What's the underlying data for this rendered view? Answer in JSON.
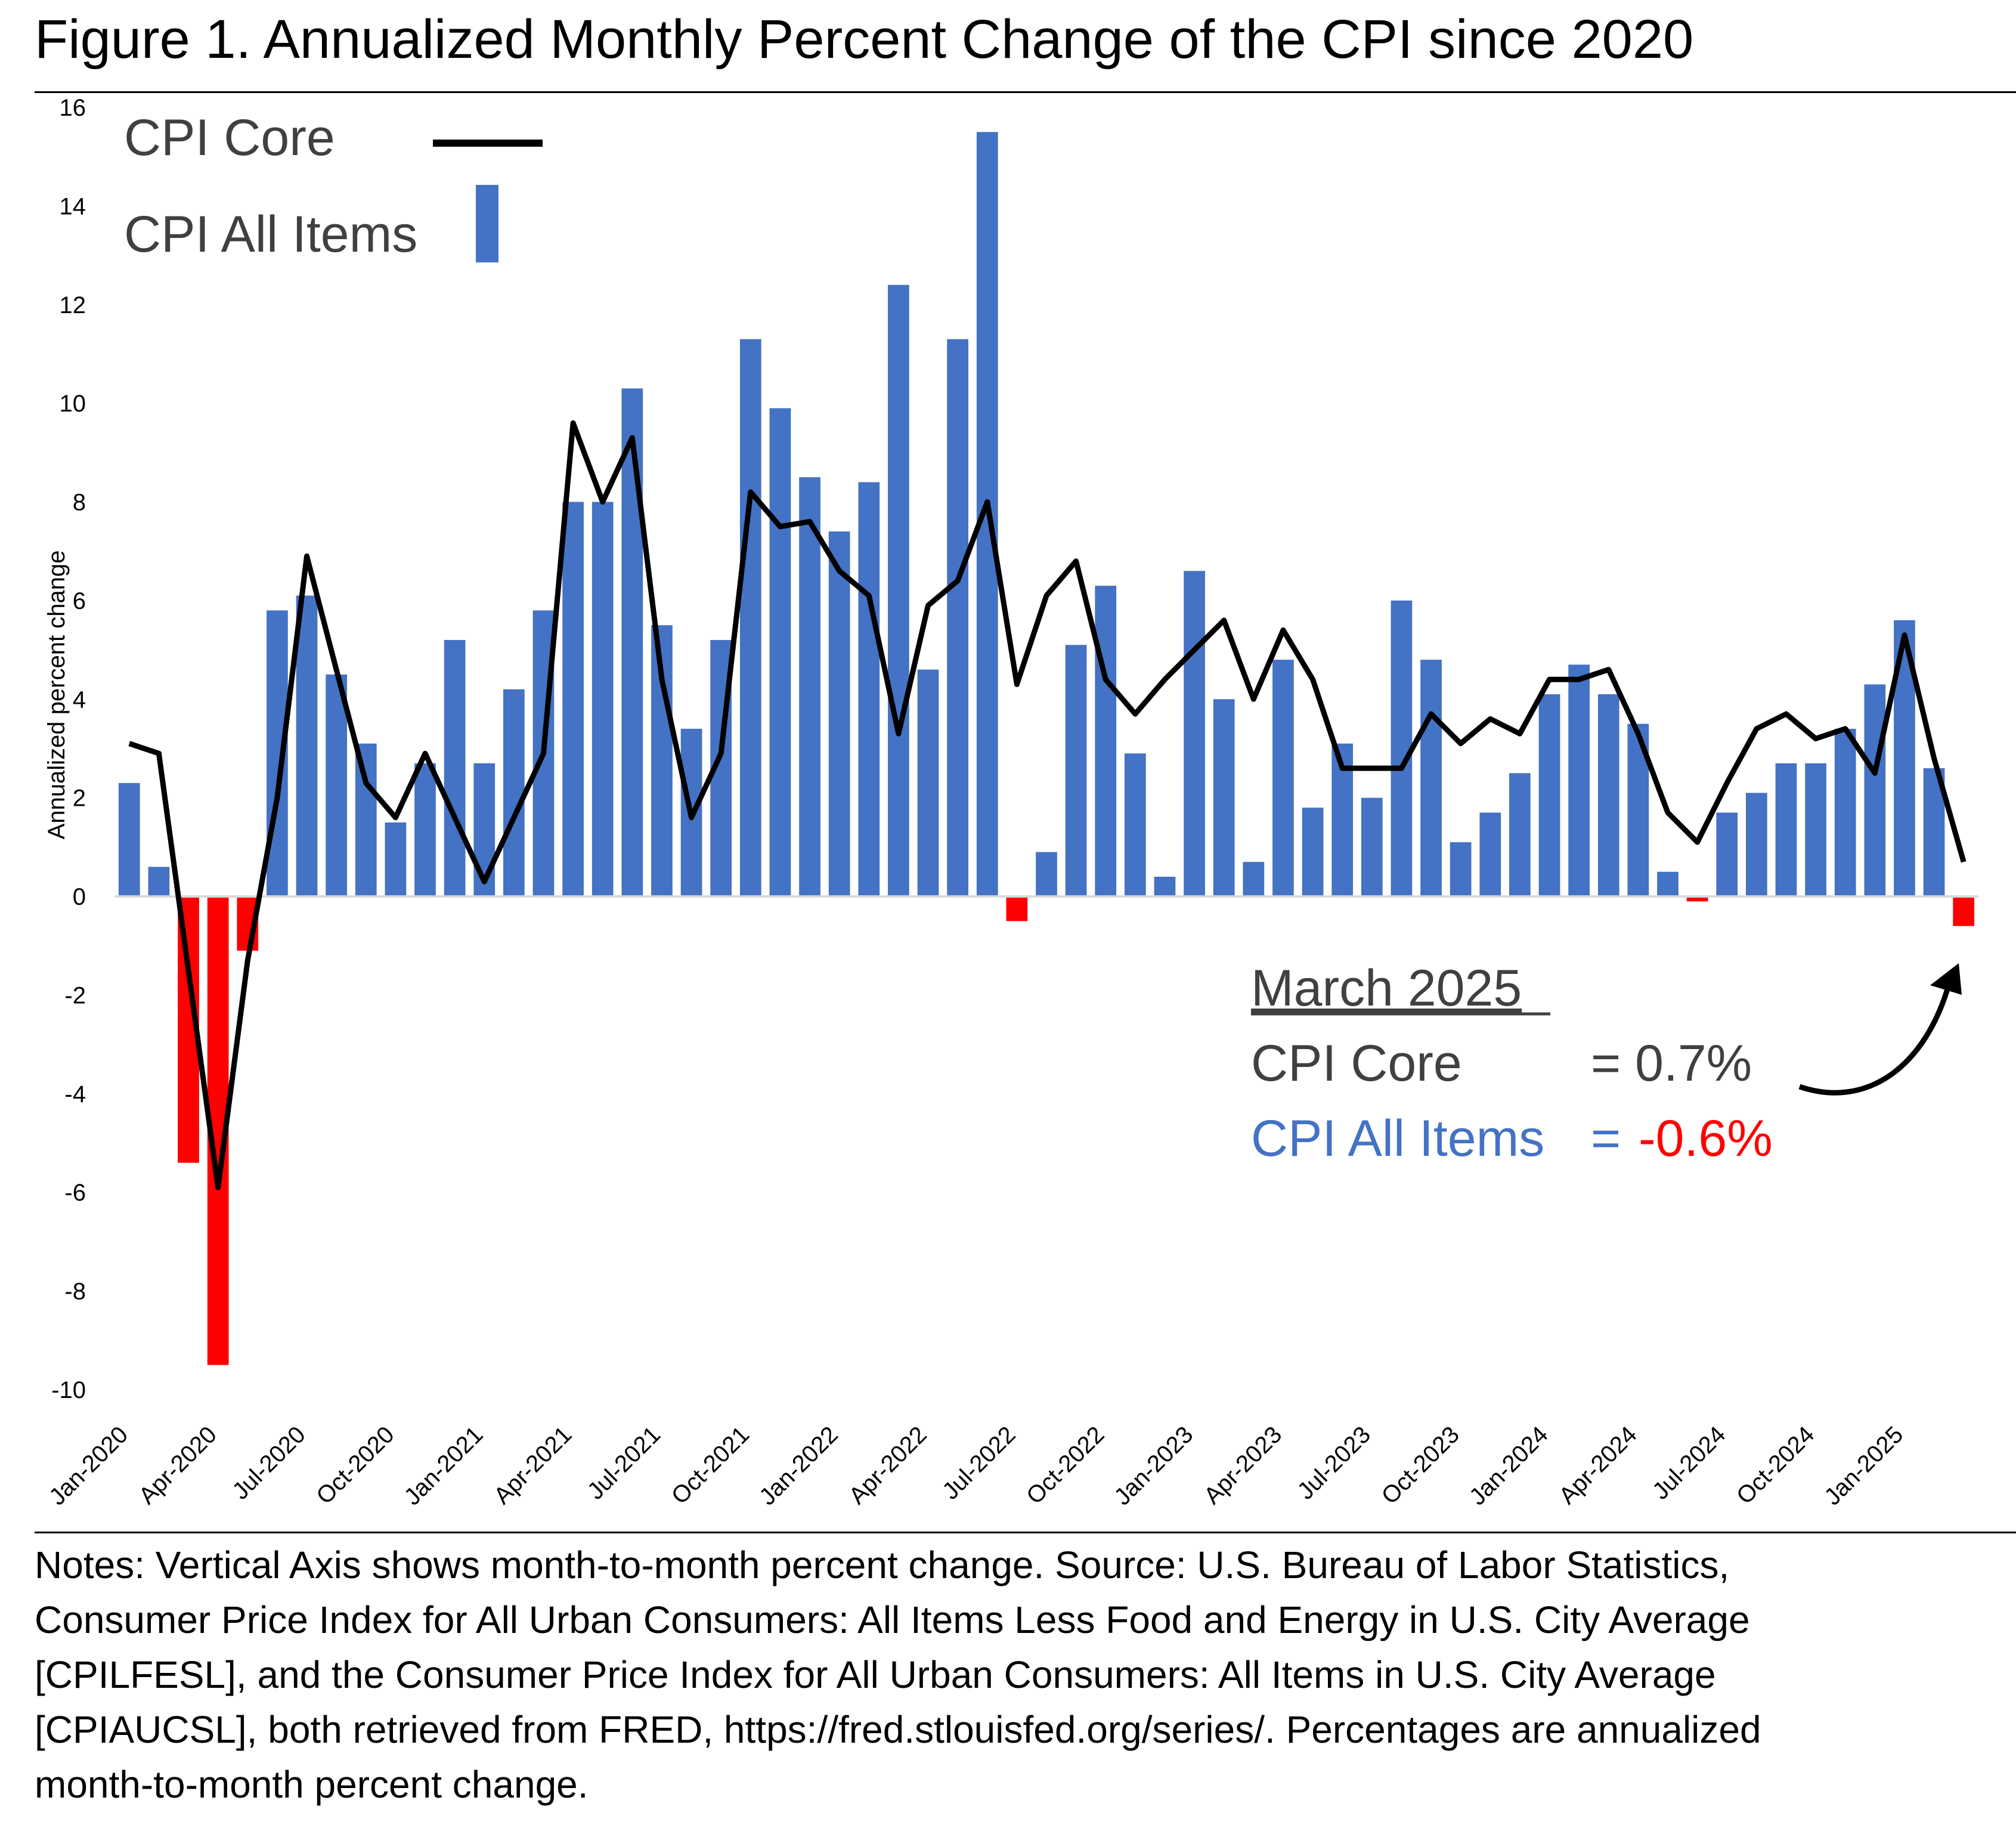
{
  "title": "Figure 1. Annualized Monthly Percent Change of the CPI since 2020",
  "notes_lines": [
    "Notes: Vertical Axis shows month-to-month percent change. Source: U.S. Bureau of Labor Statistics,",
    "Consumer Price Index for All Urban Consumers: All Items Less Food and Energy in U.S. City Average",
    "[CPILFESL], and the Consumer Price Index for All Urban Consumers: All Items in U.S. City Average",
    "[CPIAUCSL], both retrieved from FRED, https://fred.stlouisfed.org/series/. Percentages are annualized",
    "month-to-month percent change."
  ],
  "annotation": {
    "heading": "March 2025",
    "core_label": "CPI Core",
    "core_value": "= 0.7%",
    "all_label": "CPI All Items",
    "all_eq": "=",
    "all_value": "-0.6%"
  },
  "colors": {
    "bar_positive": "#4472C4",
    "bar_negative": "#FF0000",
    "core_line": "#000000",
    "legend_text": "#404040",
    "annotation_all_label": "#4472C4",
    "annotation_all_value": "#FF0000"
  },
  "chart_data": {
    "type": "bar",
    "ylabel": "Annualized percent change",
    "ylim": [
      -10,
      16
    ],
    "ytick_step": 2,
    "grid": false,
    "legend_position": "top-left",
    "categories": [
      "Jan-2020",
      "Feb-2020",
      "Mar-2020",
      "Apr-2020",
      "May-2020",
      "Jun-2020",
      "Jul-2020",
      "Aug-2020",
      "Sep-2020",
      "Oct-2020",
      "Nov-2020",
      "Dec-2020",
      "Jan-2021",
      "Feb-2021",
      "Mar-2021",
      "Apr-2021",
      "May-2021",
      "Jun-2021",
      "Jul-2021",
      "Aug-2021",
      "Sep-2021",
      "Oct-2021",
      "Nov-2021",
      "Dec-2021",
      "Jan-2022",
      "Feb-2022",
      "Mar-2022",
      "Apr-2022",
      "May-2022",
      "Jun-2022",
      "Jul-2022",
      "Aug-2022",
      "Sep-2022",
      "Oct-2022",
      "Nov-2022",
      "Dec-2022",
      "Jan-2023",
      "Feb-2023",
      "Mar-2023",
      "Apr-2023",
      "May-2023",
      "Jun-2023",
      "Jul-2023",
      "Aug-2023",
      "Sep-2023",
      "Oct-2023",
      "Nov-2023",
      "Dec-2023",
      "Jan-2024",
      "Feb-2024",
      "Mar-2024",
      "Apr-2024",
      "May-2024",
      "Jun-2024",
      "Jul-2024",
      "Aug-2024",
      "Sep-2024",
      "Oct-2024",
      "Nov-2024",
      "Dec-2024",
      "Jan-2025",
      "Feb-2025",
      "Mar-2025"
    ],
    "xtick_labels": [
      "Jan-2020",
      "Apr-2020",
      "Jul-2020",
      "Oct-2020",
      "Jan-2021",
      "Apr-2021",
      "Jul-2021",
      "Oct-2021",
      "Jan-2022",
      "Apr-2022",
      "Jul-2022",
      "Oct-2022",
      "Jan-2023",
      "Apr-2023",
      "Jul-2023",
      "Oct-2023",
      "Jan-2024",
      "Apr-2024",
      "Jul-2024",
      "Oct-2024",
      "Jan-2025"
    ],
    "series": [
      {
        "name": "CPI All Items",
        "type": "bar",
        "values": [
          2.3,
          0.6,
          -5.4,
          -9.5,
          -1.1,
          5.8,
          6.1,
          4.5,
          3.1,
          1.5,
          2.7,
          5.2,
          2.7,
          4.2,
          5.8,
          8.0,
          8.0,
          10.3,
          5.5,
          3.4,
          5.2,
          11.3,
          9.9,
          8.5,
          7.4,
          8.4,
          12.4,
          4.6,
          11.3,
          15.5,
          -0.5,
          0.9,
          5.1,
          6.3,
          2.9,
          0.4,
          6.6,
          4.0,
          0.7,
          4.8,
          1.8,
          3.1,
          2.0,
          6.0,
          4.8,
          1.1,
          1.7,
          2.5,
          4.1,
          4.7,
          4.1,
          3.5,
          0.5,
          -0.1,
          1.7,
          2.1,
          2.7,
          2.7,
          3.4,
          4.3,
          5.6,
          2.6,
          -0.6
        ]
      },
      {
        "name": "CPI Core",
        "type": "line",
        "values": [
          3.1,
          2.9,
          -1.5,
          -5.9,
          -1.3,
          2.0,
          6.9,
          4.6,
          2.3,
          1.6,
          2.9,
          1.6,
          0.3,
          1.6,
          2.9,
          9.6,
          8.0,
          9.3,
          4.4,
          1.6,
          2.9,
          8.2,
          7.5,
          7.6,
          6.6,
          6.1,
          3.3,
          5.9,
          6.4,
          8.0,
          4.3,
          6.1,
          6.8,
          4.4,
          3.7,
          4.4,
          5.0,
          5.6,
          4.0,
          5.4,
          4.4,
          2.6,
          2.6,
          2.6,
          3.7,
          3.1,
          3.6,
          3.3,
          4.4,
          4.4,
          4.6,
          3.3,
          1.7,
          1.1,
          2.3,
          3.4,
          3.7,
          3.2,
          3.4,
          2.5,
          5.3,
          2.8,
          0.7
        ]
      }
    ]
  }
}
